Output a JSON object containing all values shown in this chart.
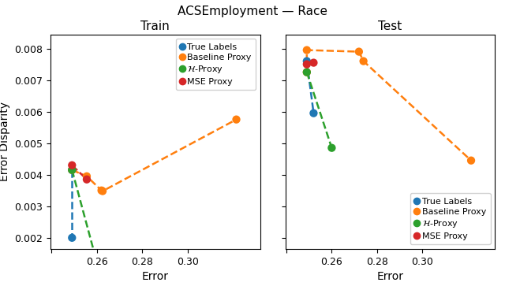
{
  "title": "ACSEmployment — Race",
  "xlabel": "Error",
  "ylabel": "Error Disparity",
  "subplot_titles": [
    "Train",
    "Test"
  ],
  "train": {
    "true_labels": {
      "x": [
        0.249,
        0.249
      ],
      "y": [
        0.00415,
        0.002
      ]
    },
    "baseline_proxy": {
      "x": [
        0.249,
        0.2555,
        0.262,
        0.2625,
        0.3215
      ],
      "y": [
        0.00415,
        0.00395,
        0.0035,
        0.00348,
        0.00575
      ]
    },
    "h_proxy": {
      "x": [
        0.249,
        0.259
      ],
      "y": [
        0.00415,
        0.00148
      ]
    },
    "mse_proxy": {
      "x": [
        0.249,
        0.2555
      ],
      "y": [
        0.0043,
        0.00385
      ]
    }
  },
  "test": {
    "true_labels": {
      "x": [
        0.249,
        0.252
      ],
      "y": [
        0.0076,
        0.00595
      ]
    },
    "baseline_proxy": {
      "x": [
        0.249,
        0.249,
        0.272,
        0.274,
        0.3215
      ],
      "y": [
        0.00725,
        0.00795,
        0.0079,
        0.0076,
        0.00445
      ]
    },
    "h_proxy": {
      "x": [
        0.249,
        0.26
      ],
      "y": [
        0.00725,
        0.00485
      ]
    },
    "mse_proxy": {
      "x": [
        0.249,
        0.252
      ],
      "y": [
        0.0075,
        0.00755
      ]
    }
  },
  "scatter_train": {
    "true_labels": {
      "x": [
        0.249,
        0.249
      ],
      "y": [
        0.00415,
        0.002
      ]
    },
    "baseline_proxy": {
      "x": [
        0.249,
        0.2555,
        0.262,
        0.2625,
        0.3215
      ],
      "y": [
        0.00415,
        0.00395,
        0.0035,
        0.00348,
        0.00575
      ]
    },
    "h_proxy": {
      "x": [
        0.249,
        0.259
      ],
      "y": [
        0.00415,
        0.00148
      ]
    },
    "mse_proxy": {
      "x": [
        0.249,
        0.2555
      ],
      "y": [
        0.0043,
        0.00385
      ]
    }
  },
  "scatter_test": {
    "true_labels": {
      "x": [
        0.249,
        0.252
      ],
      "y": [
        0.0076,
        0.00595
      ]
    },
    "baseline_proxy": {
      "x": [
        0.249,
        0.249,
        0.272,
        0.274,
        0.3215
      ],
      "y": [
        0.00725,
        0.00795,
        0.0079,
        0.0076,
        0.00445
      ]
    },
    "h_proxy": {
      "x": [
        0.249,
        0.26
      ],
      "y": [
        0.00725,
        0.00485
      ]
    },
    "mse_proxy": {
      "x": [
        0.249,
        0.252
      ],
      "y": [
        0.0075,
        0.00755
      ]
    }
  },
  "colors": {
    "true_labels": "#1f77b4",
    "baseline_proxy": "#ff7f0e",
    "h_proxy": "#2ca02c",
    "mse_proxy": "#d62728"
  },
  "train_xlim": [
    0.2395,
    0.332
  ],
  "train_ylim": [
    0.00165,
    0.00845
  ],
  "test_xlim": [
    0.2395,
    0.332
  ],
  "test_ylim": [
    0.00165,
    0.00845
  ],
  "xticks": [
    0.24,
    0.26,
    0.28,
    0.3
  ],
  "xticklabels": [
    "",
    "0.26",
    "0.28",
    "0.30"
  ],
  "yticks_train": [
    0.002,
    0.003,
    0.004,
    0.005,
    0.006,
    0.007,
    0.008
  ],
  "yticks_test": [
    0.002,
    0.003,
    0.004,
    0.005,
    0.006,
    0.007,
    0.008
  ],
  "legend_labels": {
    "true_labels": "True Labels",
    "baseline_proxy": "Baseline Proxy",
    "h_proxy": "$\\mathcal{H}$-Proxy",
    "mse_proxy": "MSE Proxy"
  },
  "title_fontsize": 11,
  "subplot_title_fontsize": 11,
  "axis_label_fontsize": 10,
  "tick_fontsize": 9,
  "legend_fontsize": 8,
  "marker_size": 55,
  "line_width": 1.8
}
